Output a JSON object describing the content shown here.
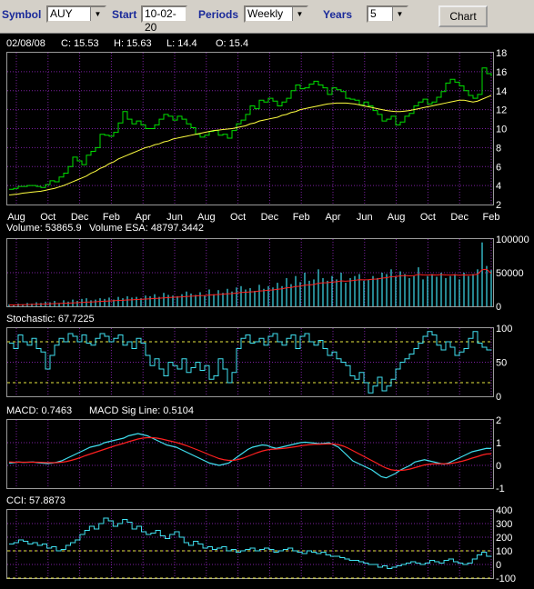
{
  "toolbar": {
    "symbol_label": "Symbol",
    "symbol_value": "AUY",
    "start_label": "Start",
    "start_value": "10-02-20",
    "periods_label": "Periods",
    "periods_value": "Weekly",
    "years_label": "Years",
    "years_value": "5",
    "chart_button": "Chart"
  },
  "colors": {
    "price": "#00e000",
    "ma": "#ffff40",
    "indicator": "#40e0f0",
    "signal": "#ff2020",
    "grid": "#7a1fa0",
    "dashed": "#e8e840"
  },
  "chart_data": [
    {
      "type": "line",
      "panel": "price",
      "info": {
        "date": "02/08/08",
        "close": "C: 15.53",
        "high": "H: 15.63",
        "low": "L: 14.4",
        "open": "O: 15.4"
      },
      "ylim": [
        2,
        18
      ],
      "yticks": [
        "2",
        "4",
        "6",
        "8",
        "10",
        "12",
        "14",
        "16",
        "18"
      ],
      "xticks": [
        "Aug",
        "Oct",
        "Dec",
        "Feb",
        "Apr",
        "Jun",
        "Aug",
        "Oct",
        "Dec",
        "Feb",
        "Apr",
        "Jun",
        "Aug",
        "Oct",
        "Dec",
        "Feb"
      ],
      "series": [
        {
          "values": [
            3.6,
            3.7,
            3.9,
            3.9,
            4.0,
            4.0,
            3.9,
            3.8,
            4.1,
            4.5,
            4.4,
            4.9,
            5.3,
            6.0,
            7.0,
            6.6,
            6.2,
            7.2,
            7.6,
            8.0,
            9.4,
            9.3,
            9.2,
            9.6,
            10.6,
            11.8,
            11.0,
            10.5,
            10.8,
            10.4,
            10.0,
            10.0,
            10.4,
            11.0,
            11.5,
            11.3,
            10.9,
            11.3,
            11.0,
            10.5,
            10.1,
            9.4,
            9.1,
            9.3,
            9.7,
            9.8,
            9.3,
            9.4,
            9.0,
            9.8,
            10.5,
            10.9,
            11.5,
            12.4,
            12.1,
            13.0,
            12.8,
            13.2,
            12.9,
            12.4,
            12.8,
            13.2,
            14.0,
            14.6,
            14.2,
            14.3,
            14.7,
            15.0,
            14.6,
            14.3,
            13.6,
            14.3,
            14.1,
            13.9,
            13.2,
            13.1,
            13.0,
            12.5,
            12.8,
            12.4,
            11.9,
            11.5,
            10.8,
            11.0,
            11.3,
            10.4,
            10.7,
            11.3,
            11.6,
            12.4,
            12.8,
            13.1,
            12.6,
            12.8,
            13.3,
            13.9,
            14.8,
            15.2,
            14.9,
            14.5,
            14.0,
            13.5,
            13.2,
            13.6,
            16.4,
            15.8,
            15.53
          ]
        },
        {
          "values": [
            3.0,
            3.05,
            3.1,
            3.2,
            3.25,
            3.3,
            3.35,
            3.4,
            3.5,
            3.6,
            3.7,
            3.85,
            4.0,
            4.2,
            4.4,
            4.6,
            4.8,
            5.0,
            5.3,
            5.5,
            5.8,
            6.0,
            6.3,
            6.5,
            6.8,
            7.0,
            7.2,
            7.4,
            7.6,
            7.8,
            8.0,
            8.1,
            8.3,
            8.4,
            8.6,
            8.7,
            8.9,
            9.0,
            9.1,
            9.2,
            9.3,
            9.4,
            9.5,
            9.6,
            9.7,
            9.8,
            9.85,
            9.9,
            9.95,
            10.0,
            10.1,
            10.2,
            10.3,
            10.5,
            10.6,
            10.8,
            10.9,
            11.0,
            11.1,
            11.2,
            11.4,
            11.5,
            11.7,
            11.8,
            12.0,
            12.1,
            12.2,
            12.3,
            12.4,
            12.5,
            12.6,
            12.65,
            12.7,
            12.7,
            12.7,
            12.65,
            12.6,
            12.5,
            12.4,
            12.3,
            12.2,
            12.1,
            12.0,
            11.9,
            11.85,
            11.8,
            11.8,
            11.85,
            11.9,
            12.0,
            12.1,
            12.2,
            12.3,
            12.4,
            12.5,
            12.6,
            12.7,
            12.8,
            12.9,
            13.0,
            13.0,
            12.9,
            12.8,
            12.9,
            13.1,
            13.3,
            13.5
          ]
        }
      ]
    },
    {
      "type": "bar",
      "panel": "volume",
      "labels": {
        "volume": "Volume: 53865.9",
        "esa": "Volume ESA: 48797.3442"
      },
      "ylim": [
        0,
        100000
      ],
      "yticks": [
        "0",
        "50000",
        "100000"
      ],
      "series": [
        {
          "values": [
            3000,
            2000,
            4000,
            3000,
            5000,
            4000,
            6000,
            5000,
            7000,
            6000,
            8000,
            5000,
            9000,
            7000,
            10000,
            8000,
            11000,
            12000,
            9000,
            10000,
            12000,
            11000,
            13000,
            10000,
            14000,
            12000,
            15000,
            13000,
            14000,
            12000,
            16000,
            15000,
            18000,
            14000,
            20000,
            17000,
            16000,
            15000,
            18000,
            22000,
            19000,
            17000,
            21000,
            16000,
            25000,
            18000,
            24000,
            20000,
            26000,
            22000,
            28000,
            30000,
            25000,
            27000,
            23000,
            32000,
            26000,
            30000,
            28000,
            35000,
            30000,
            42000,
            33000,
            45000,
            36000,
            50000,
            38000,
            40000,
            55000,
            42000,
            38000,
            45000,
            40000,
            50000,
            35000,
            42000,
            45000,
            48000,
            38000,
            40000,
            45000,
            42000,
            50000,
            48000,
            55000,
            45000,
            52000,
            48000,
            42000,
            45000,
            58000,
            40000,
            45000,
            48000,
            44000,
            50000,
            42000,
            45000,
            48000,
            40000,
            50000,
            45000,
            48000,
            55000,
            95000,
            60000,
            53866
          ]
        },
        {
          "values": [
            2000,
            2100,
            2300,
            2400,
            2600,
            2800,
            3000,
            3200,
            3500,
            3700,
            4000,
            4200,
            4500,
            4800,
            5100,
            5400,
            5800,
            6200,
            6500,
            6800,
            7200,
            7600,
            8000,
            8300,
            8700,
            9000,
            9400,
            9700,
            10100,
            10400,
            10800,
            11200,
            11700,
            12000,
            12500,
            13000,
            13300,
            13600,
            14000,
            14600,
            15000,
            15300,
            15800,
            16000,
            16800,
            17000,
            17600,
            18000,
            18600,
            19000,
            19800,
            20600,
            21000,
            21500,
            21800,
            22800,
            23200,
            24000,
            24400,
            25400,
            26000,
            27500,
            28000,
            29400,
            29900,
            31400,
            31700,
            32400,
            34300,
            34900,
            35100,
            36100,
            36500,
            37800,
            37400,
            37900,
            38600,
            39600,
            39400,
            39500,
            40300,
            40600,
            41900,
            42500,
            44100,
            44200,
            45300,
            45700,
            45500,
            45600,
            47400,
            46600,
            46500,
            46800,
            46500,
            47200,
            46700,
            46500,
            46800,
            46100,
            46700,
            46500,
            46700,
            47800,
            54400,
            55000,
            48797
          ]
        }
      ]
    },
    {
      "type": "line",
      "panel": "stochastic",
      "labels": {
        "title": "Stochastic: 67.7225"
      },
      "ylim": [
        0,
        100
      ],
      "yticks": [
        "0",
        "50",
        "100"
      ],
      "reference_lines": [
        20,
        80
      ],
      "series": [
        {
          "values": [
            78,
            70,
            90,
            80,
            75,
            85,
            70,
            65,
            40,
            60,
            75,
            85,
            80,
            92,
            88,
            80,
            90,
            78,
            75,
            85,
            92,
            88,
            80,
            85,
            90,
            75,
            80,
            70,
            85,
            78,
            60,
            45,
            55,
            40,
            30,
            50,
            45,
            40,
            55,
            35,
            42,
            50,
            38,
            45,
            25,
            30,
            55,
            40,
            20,
            35,
            70,
            85,
            90,
            78,
            80,
            85,
            75,
            88,
            92,
            80,
            75,
            85,
            90,
            70,
            88,
            92,
            80,
            75,
            82,
            70,
            60,
            65,
            55,
            50,
            45,
            30,
            25,
            35,
            20,
            5,
            15,
            28,
            8,
            15,
            25,
            40,
            50,
            55,
            62,
            70,
            78,
            88,
            95,
            90,
            75,
            68,
            80,
            72,
            60,
            65,
            70,
            85,
            95,
            78,
            72,
            68,
            67.7
          ]
        }
      ]
    },
    {
      "type": "line",
      "panel": "macd",
      "labels": {
        "macd": "MACD: 0.7463",
        "signal": "MACD Sig Line: 0.5104"
      },
      "ylim": [
        -1,
        2
      ],
      "yticks": [
        "-1",
        "0",
        "1",
        "2"
      ],
      "series": [
        {
          "values": [
            0.1,
            0.12,
            0.15,
            0.13,
            0.14,
            0.15,
            0.12,
            0.1,
            0.08,
            0.1,
            0.14,
            0.2,
            0.3,
            0.4,
            0.5,
            0.6,
            0.7,
            0.8,
            0.85,
            0.9,
            1.0,
            1.05,
            1.1,
            1.15,
            1.2,
            1.3,
            1.35,
            1.4,
            1.35,
            1.3,
            1.2,
            1.1,
            1.0,
            0.9,
            0.85,
            0.8,
            0.7,
            0.6,
            0.5,
            0.4,
            0.3,
            0.2,
            0.1,
            0.05,
            0.0,
            0.05,
            0.1,
            0.25,
            0.4,
            0.55,
            0.7,
            0.8,
            0.85,
            0.9,
            0.88,
            0.8,
            0.75,
            0.8,
            0.85,
            0.9,
            0.95,
            1.0,
            1.02,
            1.0,
            0.98,
            0.95,
            0.97,
            1.0,
            0.9,
            0.8,
            0.6,
            0.4,
            0.2,
            0.1,
            0.0,
            -0.1,
            -0.2,
            -0.35,
            -0.5,
            -0.55,
            -0.45,
            -0.35,
            -0.2,
            -0.1,
            0.0,
            0.15,
            0.2,
            0.25,
            0.2,
            0.15,
            0.1,
            0.05,
            0.1,
            0.2,
            0.3,
            0.4,
            0.5,
            0.6,
            0.65,
            0.7,
            0.75,
            0.7463
          ]
        },
        {
          "values": [
            0.15,
            0.14,
            0.14,
            0.14,
            0.14,
            0.14,
            0.14,
            0.13,
            0.12,
            0.12,
            0.12,
            0.14,
            0.17,
            0.22,
            0.28,
            0.35,
            0.43,
            0.5,
            0.57,
            0.64,
            0.71,
            0.78,
            0.85,
            0.91,
            0.97,
            1.04,
            1.1,
            1.16,
            1.2,
            1.22,
            1.22,
            1.2,
            1.16,
            1.11,
            1.06,
            1.01,
            0.95,
            0.88,
            0.8,
            0.72,
            0.64,
            0.55,
            0.46,
            0.38,
            0.3,
            0.25,
            0.22,
            0.22,
            0.26,
            0.32,
            0.4,
            0.48,
            0.56,
            0.63,
            0.68,
            0.71,
            0.72,
            0.74,
            0.76,
            0.79,
            0.82,
            0.86,
            0.89,
            0.91,
            0.93,
            0.93,
            0.94,
            0.95,
            0.94,
            0.91,
            0.85,
            0.76,
            0.65,
            0.54,
            0.43,
            0.32,
            0.21,
            0.1,
            -0.02,
            -0.12,
            -0.19,
            -0.22,
            -0.22,
            -0.2,
            -0.16,
            -0.1,
            -0.04,
            0.02,
            0.05,
            0.07,
            0.07,
            0.07,
            0.07,
            0.1,
            0.14,
            0.19,
            0.25,
            0.32,
            0.38,
            0.45,
            0.5,
            0.5104
          ]
        }
      ]
    },
    {
      "type": "line",
      "panel": "cci",
      "labels": {
        "title": "CCI: 57.8873"
      },
      "ylim": [
        -100,
        400
      ],
      "yticks": [
        "-100",
        "0",
        "100",
        "200",
        "300",
        "400"
      ],
      "reference_lines": [
        -100,
        100
      ],
      "series": [
        {
          "values": [
            150,
            160,
            180,
            170,
            150,
            160,
            140,
            150,
            120,
            130,
            100,
            110,
            140,
            160,
            180,
            220,
            250,
            280,
            260,
            300,
            340,
            320,
            280,
            300,
            330,
            310,
            260,
            280,
            240,
            220,
            230,
            250,
            210,
            190,
            220,
            240,
            200,
            160,
            140,
            170,
            150,
            120,
            130,
            110,
            120,
            130,
            100,
            110,
            90,
            100,
            110,
            120,
            100,
            110,
            120,
            110,
            90,
            100,
            110,
            120,
            100,
            90,
            80,
            100,
            90,
            80,
            90,
            70,
            60,
            60,
            50,
            40,
            30,
            30,
            20,
            10,
            0,
            0,
            -20,
            -10,
            -30,
            -20,
            -10,
            0,
            10,
            20,
            10,
            0,
            10,
            30,
            20,
            10,
            30,
            40,
            20,
            10,
            0,
            10,
            40,
            70,
            90,
            60,
            57.9
          ]
        }
      ]
    }
  ]
}
